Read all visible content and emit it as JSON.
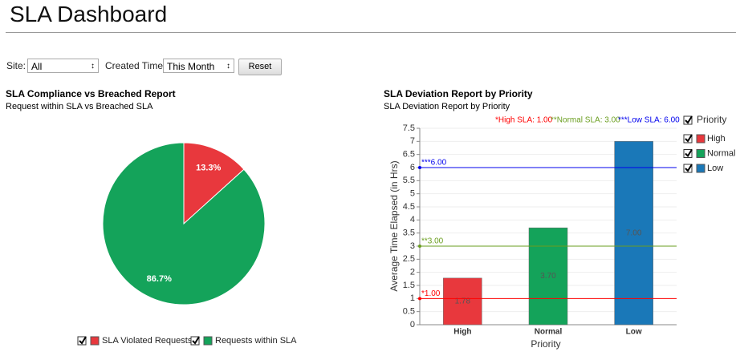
{
  "header": {
    "title": "SLA Dashboard"
  },
  "filters": {
    "site_label": "Site:",
    "site_value": "All",
    "time_label": "Created Time:",
    "time_value": "This Month",
    "reset": "Reset"
  },
  "chart_data": [
    {
      "type": "pie",
      "title": "SLA Compliance vs Breached Report",
      "subtitle": "Request within SLA vs Breached SLA",
      "categories": [
        "SLA Violated Requests",
        "Requests within SLA"
      ],
      "values": [
        13.3,
        86.7
      ],
      "value_labels": [
        "13.3%",
        "86.7%"
      ],
      "colors": [
        "#e8383d",
        "#14a35a"
      ]
    },
    {
      "type": "bar",
      "title": "SLA Deviation Report by Priority",
      "subtitle": "SLA Deviation Report by Priority",
      "categories": [
        "High",
        "Normal",
        "Low"
      ],
      "values": [
        1.78,
        3.7,
        7.0
      ],
      "value_labels": [
        "1.78",
        "3.70",
        "7.00"
      ],
      "colors": [
        "#e8383d",
        "#14a35a",
        "#1a78b8"
      ],
      "legend_title": "Priority",
      "xlabel": "Priority",
      "ylabel": "Average Time Elapsed (in Hrs)",
      "ylim": [
        0,
        7.5
      ],
      "yticks": [
        0,
        0.5,
        1,
        1.5,
        2,
        2.5,
        3,
        3.5,
        4,
        4.5,
        5,
        5.5,
        6,
        6.5,
        7,
        7.5
      ],
      "grid": true,
      "reference_lines": [
        {
          "value": 1,
          "label": "*1.00",
          "note": "*High SLA: 1.00",
          "color": "#ff0000"
        },
        {
          "value": 3,
          "label": "**3.00",
          "note": "**Normal SLA: 3.00",
          "color": "#6a9e1f"
        },
        {
          "value": 6,
          "label": "***6.00",
          "note": "***Low SLA: 6.00",
          "color": "#0000ee"
        }
      ]
    }
  ]
}
